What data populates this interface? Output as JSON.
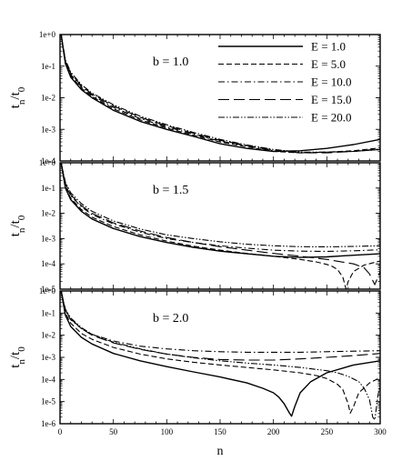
{
  "chart_data": {
    "type": "line",
    "xlabel": "n",
    "xlim": [
      0,
      300
    ],
    "x_ticks": [
      0,
      50,
      100,
      150,
      200,
      250,
      300
    ],
    "y_scale": "log",
    "legend": {
      "placement": "top-right of top panel",
      "entries": [
        "E =  1.0",
        "E =  5.0",
        "E = 10.0",
        "E = 15.0",
        "E = 20.0"
      ],
      "styles": [
        "solid",
        "dashed",
        "dash-dot",
        "long-dash",
        "dash-dot-dot"
      ]
    },
    "panels": [
      {
        "annotation": "b = 1.0",
        "ylabel": "t_n/t_0",
        "ylim": [
          0.0001,
          1
        ],
        "y_ticks": [
          "1e-4",
          "1e-3",
          "1e-2",
          "1e-1",
          "1e+0"
        ],
        "series": [
          {
            "name": "E =  1.0",
            "x": [
              1,
              5,
              10,
              20,
              30,
              50,
              75,
              100,
              125,
              150,
              175,
              200,
              225,
              250,
              275,
              300
            ],
            "y": [
              1,
              0.12,
              0.045,
              0.018,
              0.01,
              0.004,
              0.0018,
              0.001,
              0.0006,
              0.00035,
              0.00025,
              0.0002,
              0.00021,
              0.00025,
              0.00033,
              0.00048
            ]
          },
          {
            "name": "E =  5.0",
            "x": [
              1,
              5,
              10,
              20,
              30,
              50,
              75,
              100,
              125,
              150,
              175,
              200,
              225,
              250,
              275,
              300
            ],
            "y": [
              1,
              0.13,
              0.05,
              0.02,
              0.011,
              0.0045,
              0.002,
              0.0011,
              0.00065,
              0.0004,
              0.00028,
              0.0002,
              0.00018,
              0.00019,
              0.00021,
              0.00026
            ]
          },
          {
            "name": "E = 10.0",
            "x": [
              1,
              5,
              10,
              20,
              30,
              50,
              75,
              100,
              125,
              150,
              175,
              200,
              225,
              250,
              275,
              300
            ],
            "y": [
              1,
              0.14,
              0.055,
              0.022,
              0.012,
              0.005,
              0.0022,
              0.0012,
              0.0007,
              0.00042,
              0.0003,
              0.00021,
              0.00018,
              0.00019,
              0.0002,
              0.00024
            ]
          },
          {
            "name": "E = 15.0",
            "x": [
              1,
              5,
              10,
              20,
              30,
              50,
              75,
              100,
              125,
              150,
              175,
              200,
              225,
              250,
              275,
              300
            ],
            "y": [
              1,
              0.15,
              0.06,
              0.024,
              0.013,
              0.0055,
              0.0024,
              0.0013,
              0.00075,
              0.00045,
              0.00031,
              0.00022,
              0.00018,
              0.00018,
              0.0002,
              0.00023
            ]
          },
          {
            "name": "E = 20.0",
            "x": [
              1,
              5,
              10,
              20,
              30,
              50,
              75,
              100,
              125,
              150,
              175,
              200,
              225,
              250,
              275,
              300
            ],
            "y": [
              1,
              0.16,
              0.065,
              0.026,
              0.014,
              0.006,
              0.0026,
              0.0014,
              0.0008,
              0.00048,
              0.00032,
              0.00023,
              0.00019,
              0.00019,
              0.0002,
              0.00023
            ]
          }
        ]
      },
      {
        "annotation": "b = 1.5",
        "ylabel": "t_n/t_0",
        "ylim": [
          1e-05,
          1
        ],
        "y_ticks": [
          "1e-5",
          "1e-4",
          "1e-3",
          "1e-2",
          "1e-1",
          "1e+0"
        ],
        "series": [
          {
            "name": "E =  1.0",
            "x": [
              1,
              5,
              10,
              20,
              30,
              50,
              75,
              100,
              125,
              150,
              175,
              200,
              225,
              250,
              275,
              300
            ],
            "y": [
              1,
              0.1,
              0.035,
              0.012,
              0.006,
              0.0025,
              0.0012,
              0.0007,
              0.00045,
              0.00032,
              0.00025,
              0.0002,
              0.00018,
              0.00019,
              0.00022,
              0.00025
            ]
          },
          {
            "name": "E =  5.0",
            "x": [
              1,
              5,
              10,
              20,
              30,
              50,
              75,
              100,
              125,
              150,
              175,
              200,
              225,
              240,
              250,
              255,
              260,
              265,
              268,
              270,
              275,
              285,
              300
            ],
            "y": [
              1,
              0.11,
              0.04,
              0.014,
              0.007,
              0.003,
              0.0014,
              0.0008,
              0.0005,
              0.00035,
              0.00026,
              0.0002,
              0.00015,
              0.00012,
              9.5e-05,
              8e-05,
              6e-05,
              3e-05,
              1e-05,
              2e-05,
              5e-05,
              9e-05,
              0.00013
            ]
          },
          {
            "name": "E = 10.0",
            "x": [
              1,
              5,
              10,
              20,
              30,
              50,
              75,
              100,
              125,
              150,
              175,
              200,
              225,
              250,
              275,
              300
            ],
            "y": [
              1,
              0.13,
              0.05,
              0.018,
              0.009,
              0.0038,
              0.0018,
              0.001,
              0.0007,
              0.00052,
              0.00042,
              0.00035,
              0.00032,
              0.00031,
              0.00033,
              0.00036
            ]
          },
          {
            "name": "E = 15.0",
            "x": [
              1,
              5,
              10,
              20,
              30,
              50,
              75,
              100,
              125,
              150,
              175,
              200,
              225,
              250,
              275,
              285,
              290,
              295,
              300
            ],
            "y": [
              1,
              0.15,
              0.055,
              0.02,
              0.01,
              0.0042,
              0.002,
              0.0011,
              0.0007,
              0.00048,
              0.00035,
              0.00026,
              0.0002,
              0.00015,
              0.0001,
              7e-05,
              4e-05,
              1.5e-05,
              5e-05
            ]
          },
          {
            "name": "E = 20.0",
            "x": [
              1,
              5,
              10,
              20,
              30,
              50,
              75,
              100,
              125,
              150,
              175,
              200,
              225,
              250,
              275,
              300
            ],
            "y": [
              1,
              0.17,
              0.065,
              0.024,
              0.012,
              0.005,
              0.0024,
              0.0014,
              0.001,
              0.00075,
              0.0006,
              0.00052,
              0.00048,
              0.00047,
              0.00049,
              0.00052
            ]
          }
        ]
      },
      {
        "annotation": "b = 2.0",
        "ylabel": "t_n/t_0",
        "ylim": [
          1e-06,
          1
        ],
        "y_ticks": [
          "1e-6",
          "1e-5",
          "1e-4",
          "1e-3",
          "1e-2",
          "1e-1",
          "1e+0"
        ],
        "series": [
          {
            "name": "E =  1.0",
            "x": [
              1,
              5,
              10,
              20,
              30,
              50,
              75,
              100,
              125,
              150,
              175,
              190,
              200,
              205,
              210,
              215,
              217,
              220,
              225,
              235,
              250,
              275,
              300
            ],
            "y": [
              1,
              0.08,
              0.025,
              0.008,
              0.004,
              0.0015,
              0.0007,
              0.00038,
              0.00022,
              0.00013,
              7e-05,
              4e-05,
              2.5e-05,
              1.6e-05,
              8e-06,
              3e-06,
              2.2e-06,
              6e-06,
              2.5e-05,
              8e-05,
              0.0002,
              0.00045,
              0.0007
            ]
          },
          {
            "name": "E =  5.0",
            "x": [
              1,
              5,
              10,
              20,
              30,
              50,
              75,
              100,
              125,
              150,
              175,
              200,
              225,
              240,
              250,
              260,
              265,
              270,
              272,
              275,
              280,
              290,
              300
            ],
            "y": [
              1,
              0.1,
              0.035,
              0.012,
              0.0065,
              0.0028,
              0.0014,
              0.00085,
              0.0006,
              0.00045,
              0.00035,
              0.00027,
              0.0002,
              0.00015,
              0.00011,
              6e-05,
              3.5e-05,
              8e-06,
              3e-06,
              6e-06,
              2.5e-05,
              7e-05,
              0.00012
            ]
          },
          {
            "name": "E = 10.0",
            "x": [
              1,
              5,
              10,
              20,
              30,
              50,
              75,
              100,
              125,
              150,
              175,
              200,
              225,
              250,
              275,
              300
            ],
            "y": [
              1,
              0.13,
              0.05,
              0.02,
              0.011,
              0.0055,
              0.0032,
              0.0024,
              0.002,
              0.0018,
              0.0017,
              0.0017,
              0.0017,
              0.0018,
              0.0019,
              0.002
            ]
          },
          {
            "name": "E = 15.0",
            "x": [
              1,
              5,
              10,
              20,
              30,
              50,
              75,
              100,
              125,
              150,
              175,
              200,
              225,
              250,
              275,
              300
            ],
            "y": [
              1,
              0.14,
              0.055,
              0.02,
              0.01,
              0.0045,
              0.0023,
              0.0014,
              0.001,
              0.0008,
              0.00075,
              0.00075,
              0.00085,
              0.001,
              0.0012,
              0.0015
            ]
          },
          {
            "name": "E = 20.0",
            "x": [
              1,
              5,
              10,
              20,
              30,
              50,
              75,
              100,
              125,
              150,
              175,
              200,
              225,
              250,
              260,
              270,
              280,
              285,
              290,
              293,
              295,
              298,
              300
            ],
            "y": [
              1,
              0.15,
              0.06,
              0.022,
              0.011,
              0.0048,
              0.0024,
              0.0014,
              0.00095,
              0.0007,
              0.00055,
              0.00045,
              0.00035,
              0.00025,
              0.0002,
              0.00014,
              8e-05,
              4e-05,
              1.2e-05,
              2e-06,
              1.5e-06,
              2e-05,
              6e-05
            ]
          }
        ]
      }
    ]
  }
}
